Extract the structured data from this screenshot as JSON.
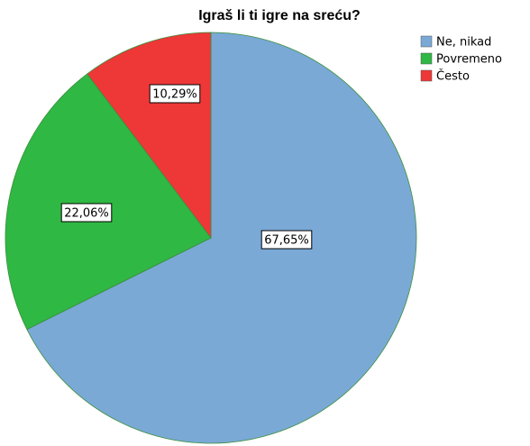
{
  "chart_data": {
    "type": "pie",
    "title": "Igraš li ti igre na sreću?",
    "categories": [
      "Ne, nikad",
      "Povremeno",
      "Često"
    ],
    "values": [
      67.65,
      22.06,
      10.29
    ],
    "value_labels": [
      "67,65%",
      "22,06%",
      "10,29%"
    ],
    "colors": [
      "#7aa9d6",
      "#2fb844",
      "#ee3737"
    ],
    "legend": "top-right"
  }
}
